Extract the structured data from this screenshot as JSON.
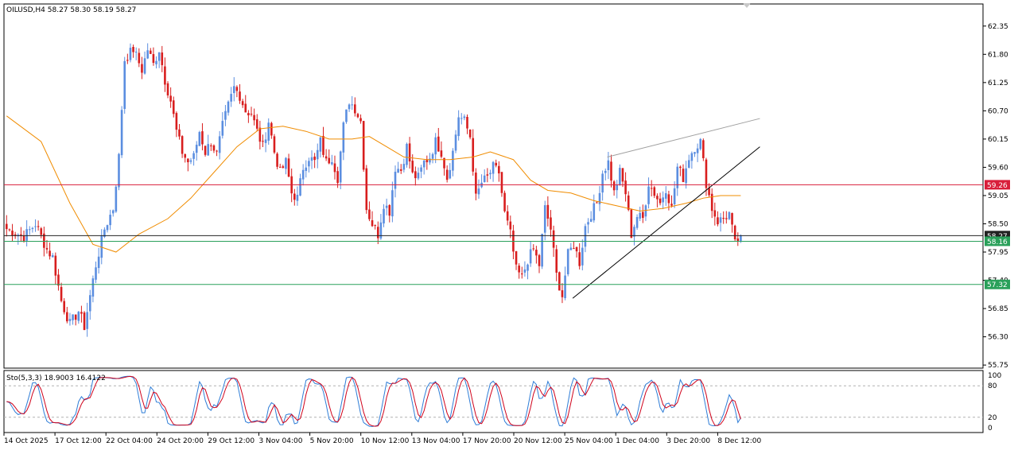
{
  "header": {
    "symbol_text": "OILUSD,H4  58.27 58.30 58.19 58.27"
  },
  "stoch": {
    "label": "Sto(5,3,3) 18.9003 16.4122",
    "scale_labels": [
      "100",
      "80",
      "20",
      "0"
    ],
    "levels": [
      80,
      20
    ],
    "k_color": "#2e7dd7",
    "d_color": "#d0021b"
  },
  "colors": {
    "bull": "#5b8ee0",
    "bear": "#d81e1e",
    "ma": "#f08c00",
    "red_line": "#d81e3a",
    "green_line": "#2aa05a",
    "trend": "#000000",
    "channel": "#a0a0a0"
  },
  "chart_data": [
    {
      "type": "candlestick",
      "title": "OILUSD,H4",
      "ohlc_last": {
        "open": 58.27,
        "high": 58.3,
        "low": 58.19,
        "close": 58.27
      },
      "y_ticks": [
        62.35,
        61.8,
        61.25,
        60.7,
        60.15,
        59.6,
        59.05,
        58.5,
        57.95,
        57.4,
        56.85,
        56.3,
        55.75
      ],
      "ylim": [
        55.69,
        62.78
      ],
      "x_tick_labels": [
        "14 Oct 2025",
        "17 Oct 12:00",
        "22 Oct 04:00",
        "24 Oct 20:00",
        "29 Oct 12:00",
        "3 Nov 04:00",
        "5 Nov 20:00",
        "10 Nov 12:00",
        "13 Nov 04:00",
        "17 Nov 20:00",
        "20 Nov 12:00",
        "25 Nov 04:00",
        "1 Dec 04:00",
        "3 Dec 20:00",
        "8 Dec 12:00"
      ],
      "horizontal_lines": [
        {
          "price": 59.26,
          "label": "59.26",
          "color": "#d81e3a"
        },
        {
          "price": 58.27,
          "label": "58.27",
          "color": "#222222"
        },
        {
          "price": 58.16,
          "label": "58.16",
          "color": "#2aa05a"
        },
        {
          "price": 57.32,
          "label": "57.32",
          "color": "#2aa05a"
        }
      ],
      "price_path": [
        [
          0,
          58.4
        ],
        [
          6,
          58.25
        ],
        [
          10,
          58.5
        ],
        [
          14,
          58.0
        ],
        [
          16,
          57.85
        ],
        [
          19,
          57.0
        ],
        [
          22,
          56.55
        ],
        [
          25,
          56.8
        ],
        [
          27,
          56.5
        ],
        [
          31,
          57.7
        ],
        [
          34,
          58.4
        ],
        [
          37,
          58.8
        ],
        [
          39,
          59.8
        ],
        [
          41,
          61.7
        ],
        [
          44,
          61.9
        ],
        [
          47,
          61.5
        ],
        [
          49,
          61.9
        ],
        [
          51,
          61.6
        ],
        [
          53,
          61.9
        ],
        [
          55,
          61.3
        ],
        [
          57,
          60.9
        ],
        [
          59,
          60.3
        ],
        [
          61,
          59.9
        ],
        [
          63,
          59.7
        ],
        [
          65,
          59.8
        ],
        [
          67,
          60.3
        ],
        [
          69,
          59.9
        ],
        [
          71,
          60.1
        ],
        [
          73,
          59.85
        ],
        [
          75,
          60.4
        ],
        [
          77,
          60.8
        ],
        [
          79,
          61.15
        ],
        [
          81,
          61.0
        ],
        [
          83,
          60.7
        ],
        [
          85,
          60.65
        ],
        [
          87,
          60.3
        ],
        [
          89,
          60.0
        ],
        [
          91,
          60.5
        ],
        [
          93,
          59.9
        ],
        [
          95,
          59.5
        ],
        [
          97,
          59.7
        ],
        [
          99,
          59.1
        ],
        [
          101,
          59.0
        ],
        [
          103,
          59.6
        ],
        [
          105,
          59.8
        ],
        [
          107,
          59.7
        ],
        [
          109,
          60.1
        ],
        [
          111,
          59.7
        ],
        [
          113,
          59.8
        ],
        [
          115,
          59.4
        ],
        [
          117,
          60.4
        ],
        [
          119,
          60.9
        ],
        [
          121,
          60.75
        ],
        [
          123,
          60.5
        ],
        [
          125,
          58.8
        ],
        [
          127,
          58.5
        ],
        [
          129,
          58.3
        ],
        [
          131,
          58.9
        ],
        [
          133,
          58.75
        ],
        [
          135,
          59.6
        ],
        [
          137,
          59.55
        ],
        [
          139,
          60.0
        ],
        [
          141,
          59.45
        ],
        [
          143,
          59.4
        ],
        [
          145,
          59.7
        ],
        [
          147,
          59.8
        ],
        [
          149,
          60.1
        ],
        [
          151,
          59.9
        ],
        [
          153,
          59.4
        ],
        [
          155,
          59.9
        ],
        [
          157,
          60.6
        ],
        [
          159,
          60.5
        ],
        [
          161,
          60.2
        ],
        [
          163,
          59.0
        ],
        [
          165,
          59.3
        ],
        [
          167,
          59.4
        ],
        [
          169,
          59.6
        ],
        [
          171,
          59.5
        ],
        [
          173,
          58.7
        ],
        [
          175,
          58.3
        ],
        [
          177,
          57.6
        ],
        [
          179,
          57.45
        ],
        [
          181,
          57.8
        ],
        [
          183,
          58.0
        ],
        [
          185,
          57.7
        ],
        [
          187,
          58.8
        ],
        [
          189,
          58.4
        ],
        [
          191,
          57.5
        ],
        [
          193,
          57.1
        ],
        [
          195,
          57.9
        ],
        [
          197,
          58.1
        ],
        [
          199,
          57.75
        ],
        [
          201,
          58.45
        ],
        [
          203,
          58.7
        ],
        [
          205,
          58.9
        ],
        [
          207,
          59.5
        ],
        [
          209,
          59.7
        ],
        [
          211,
          59.1
        ],
        [
          213,
          59.5
        ],
        [
          215,
          59.1
        ],
        [
          217,
          58.3
        ],
        [
          219,
          58.65
        ],
        [
          221,
          58.6
        ],
        [
          223,
          59.3
        ],
        [
          225,
          59.1
        ],
        [
          227,
          58.9
        ],
        [
          229,
          59.2
        ],
        [
          231,
          58.8
        ],
        [
          233,
          59.6
        ],
        [
          235,
          59.4
        ],
        [
          237,
          59.8
        ],
        [
          239,
          60.0
        ],
        [
          241,
          60.1
        ],
        [
          243,
          59.3
        ],
        [
          245,
          58.8
        ],
        [
          247,
          58.55
        ],
        [
          249,
          58.6
        ],
        [
          251,
          58.7
        ],
        [
          253,
          58.1
        ],
        [
          255,
          58.27
        ]
      ],
      "ma_path": [
        [
          0,
          60.6
        ],
        [
          12,
          60.1
        ],
        [
          22,
          58.9
        ],
        [
          30,
          58.1
        ],
        [
          38,
          57.95
        ],
        [
          46,
          58.3
        ],
        [
          56,
          58.6
        ],
        [
          64,
          59.0
        ],
        [
          72,
          59.5
        ],
        [
          80,
          60.0
        ],
        [
          88,
          60.35
        ],
        [
          96,
          60.4
        ],
        [
          104,
          60.3
        ],
        [
          112,
          60.15
        ],
        [
          120,
          60.15
        ],
        [
          126,
          60.2
        ],
        [
          132,
          60.0
        ],
        [
          138,
          59.8
        ],
        [
          146,
          59.75
        ],
        [
          154,
          59.75
        ],
        [
          162,
          59.8
        ],
        [
          168,
          59.9
        ],
        [
          176,
          59.75
        ],
        [
          182,
          59.35
        ],
        [
          188,
          59.15
        ],
        [
          196,
          59.1
        ],
        [
          204,
          58.95
        ],
        [
          212,
          58.85
        ],
        [
          220,
          58.75
        ],
        [
          228,
          58.8
        ],
        [
          236,
          58.9
        ],
        [
          242,
          59.0
        ],
        [
          248,
          59.05
        ],
        [
          255,
          59.05
        ]
      ],
      "trendline": {
        "from": [
          197,
          57.05
        ],
        "to": [
          262,
          60.0
        ]
      },
      "channel_line": {
        "from": [
          209,
          59.8
        ],
        "to": [
          262,
          60.55
        ]
      }
    },
    {
      "type": "line",
      "title": "Sto(5,3,3)",
      "series": [
        {
          "name": "%K",
          "value": 18.9003
        },
        {
          "name": "%D",
          "value": 16.4122
        }
      ],
      "ylim": [
        0,
        100
      ],
      "levels": [
        80,
        20
      ]
    }
  ]
}
